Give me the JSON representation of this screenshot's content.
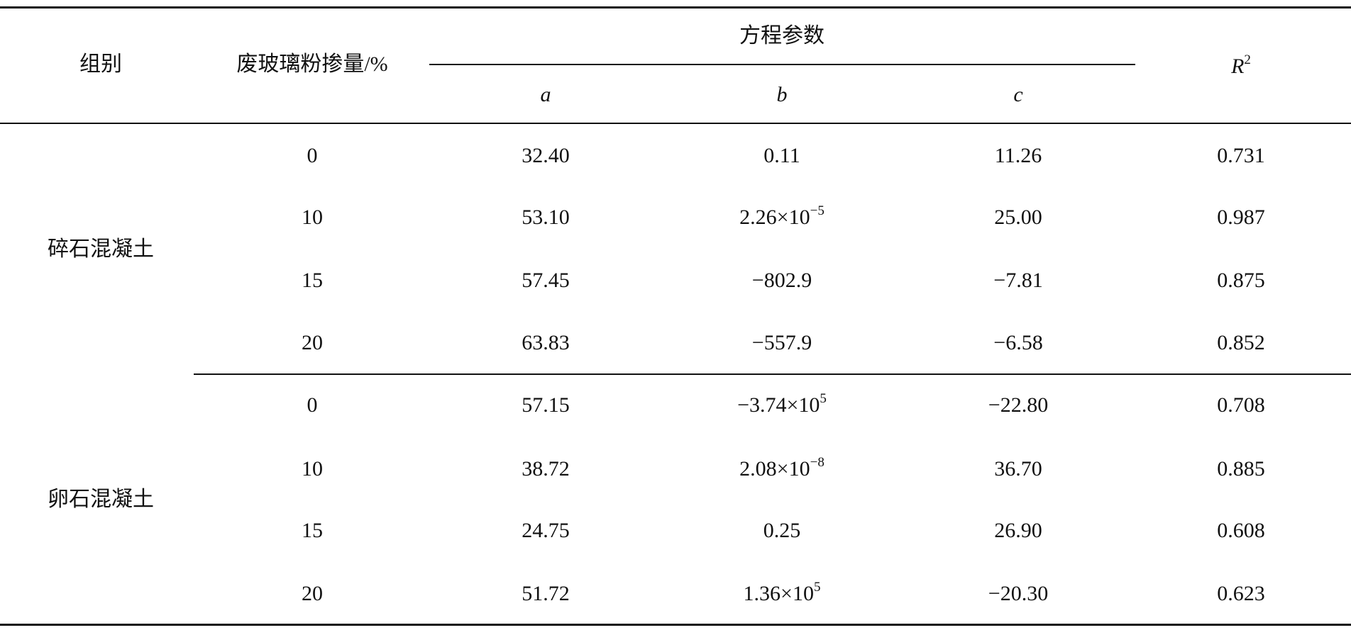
{
  "header": {
    "group": "组别",
    "dosage": "废玻璃粉掺量/%",
    "params": "方程参数",
    "a": "a",
    "b": "b",
    "c": "c",
    "r2": {
      "base": "R",
      "sup": "2"
    }
  },
  "groups": [
    {
      "name": "碎石混凝土",
      "rows": [
        [
          "0",
          "32.40",
          "0.11",
          "11.26",
          "0.731"
        ],
        [
          "10",
          "53.10",
          {
            "base": "2.26×10",
            "sup": "−5"
          },
          "25.00",
          "0.987"
        ],
        [
          "15",
          "57.45",
          "−802.9",
          "−7.81",
          "0.875"
        ],
        [
          "20",
          "63.83",
          "−557.9",
          "−6.58",
          "0.852"
        ]
      ]
    },
    {
      "name": "卵石混凝土",
      "rows": [
        [
          "0",
          "57.15",
          {
            "base": "−3.74×10",
            "sup": "5"
          },
          "−22.80",
          "0.708"
        ],
        [
          "10",
          "38.72",
          {
            "base": "2.08×10",
            "sup": "−8"
          },
          "36.70",
          "0.885"
        ],
        [
          "15",
          "24.75",
          "0.25",
          "26.90",
          "0.608"
        ],
        [
          "20",
          "51.72",
          {
            "base": "1.36×10",
            "sup": "5"
          },
          "−20.30",
          "0.623"
        ]
      ]
    }
  ]
}
